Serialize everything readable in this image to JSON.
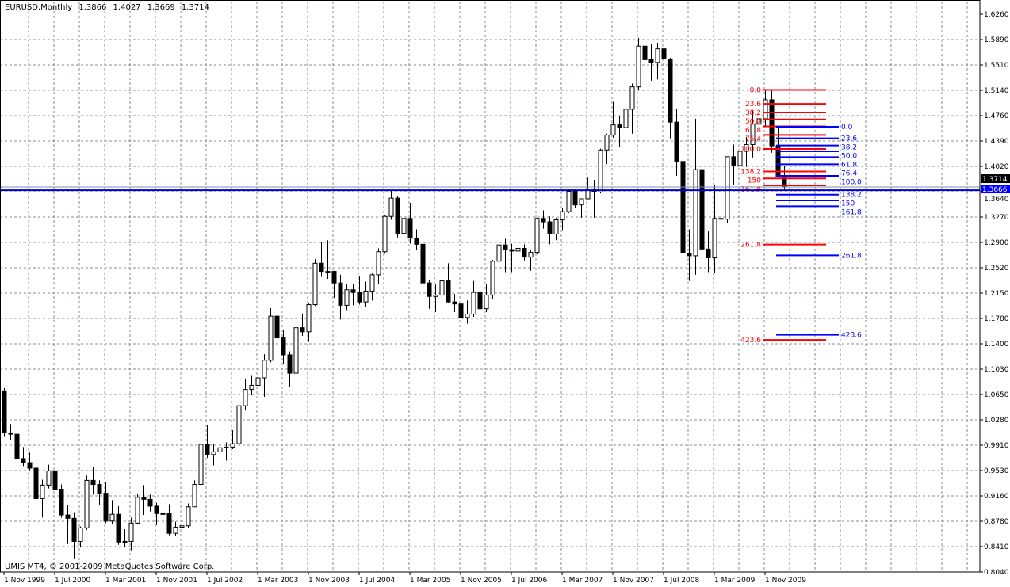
{
  "header": {
    "symbol_timeframe": "EURUSD,Monthly",
    "open": "1.3866",
    "high": "1.4027",
    "low": "1.3669",
    "close": "1.3714"
  },
  "footer": {
    "copyright": "UMIS MT4, © 2001-2009 MetaQuotes Software Corp."
  },
  "colors": {
    "background": "#ffffff",
    "grid": "#7f8c9c",
    "bull_body": "#ffffff",
    "bear_body": "#000000",
    "fib_red": "#ff0000",
    "fib_blue": "#0000ff",
    "bid_line": "#0000cc",
    "ask_line": "#8090a0"
  },
  "chart_data": {
    "type": "candlestick",
    "symbol": "EURUSD",
    "timeframe": "Monthly",
    "grid": true,
    "ylim": [
      0.804,
      1.626
    ],
    "y_ticks": [
      "1.6260",
      "1.5890",
      "1.5510",
      "1.5140",
      "1.4760",
      "1.4390",
      "1.4020",
      "1.3640",
      "1.3270",
      "1.2900",
      "1.2520",
      "1.2150",
      "1.1780",
      "1.1400",
      "1.1030",
      "1.0650",
      "1.0280",
      "0.9910",
      "0.9530",
      "0.9160",
      "0.8780",
      "0.8410",
      "0.8040"
    ],
    "x_ticks": [
      "1 Nov 1999",
      "1 Jul 2000",
      "1 Mar 2001",
      "1 Nov 2001",
      "1 Jul 2002",
      "1 Mar 2003",
      "1 Nov 2003",
      "1 Jul 2004",
      "1 Mar 2005",
      "1 Nov 2005",
      "1 Jul 2006",
      "1 Mar 2007",
      "1 Nov 2007",
      "1 Jul 2008",
      "1 Mar 2009",
      "1 Nov 2009"
    ],
    "price_labels": {
      "ask": "1.3714",
      "bid": "1.3666"
    },
    "candles_columns": [
      "date",
      "open",
      "high",
      "low",
      "close"
    ],
    "candles": [
      [
        "1999-11",
        1.071,
        1.075,
        1.003,
        1.009
      ],
      [
        "1999-12",
        1.009,
        1.022,
        0.999,
        1.007
      ],
      [
        "2000-01",
        1.007,
        1.041,
        0.97,
        0.971
      ],
      [
        "2000-02",
        0.971,
        0.988,
        0.96,
        0.965
      ],
      [
        "2000-03",
        0.965,
        0.98,
        0.954,
        0.957
      ],
      [
        "2000-04",
        0.957,
        0.967,
        0.905,
        0.912
      ],
      [
        "2000-05",
        0.912,
        0.94,
        0.884,
        0.932
      ],
      [
        "2000-06",
        0.932,
        0.962,
        0.927,
        0.953
      ],
      [
        "2000-07",
        0.953,
        0.959,
        0.923,
        0.926
      ],
      [
        "2000-08",
        0.926,
        0.933,
        0.884,
        0.888
      ],
      [
        "2000-09",
        0.888,
        0.903,
        0.845,
        0.883
      ],
      [
        "2000-10",
        0.883,
        0.892,
        0.823,
        0.849
      ],
      [
        "2000-11",
        0.849,
        0.871,
        0.84,
        0.869
      ],
      [
        "2000-12",
        0.869,
        0.946,
        0.866,
        0.939
      ],
      [
        "2001-01",
        0.939,
        0.959,
        0.918,
        0.933
      ],
      [
        "2001-02",
        0.933,
        0.939,
        0.903,
        0.92
      ],
      [
        "2001-03",
        0.92,
        0.936,
        0.876,
        0.879
      ],
      [
        "2001-04",
        0.879,
        0.91,
        0.874,
        0.889
      ],
      [
        "2001-05",
        0.889,
        0.901,
        0.844,
        0.848
      ],
      [
        "2001-06",
        0.848,
        0.867,
        0.84,
        0.849
      ],
      [
        "2001-07",
        0.849,
        0.884,
        0.836,
        0.876
      ],
      [
        "2001-08",
        0.876,
        0.919,
        0.874,
        0.914
      ],
      [
        "2001-09",
        0.914,
        0.932,
        0.888,
        0.911
      ],
      [
        "2001-10",
        0.911,
        0.918,
        0.893,
        0.901
      ],
      [
        "2001-11",
        0.901,
        0.906,
        0.873,
        0.89
      ],
      [
        "2001-12",
        0.89,
        0.9,
        0.875,
        0.89
      ],
      [
        "2002-01",
        0.89,
        0.904,
        0.858,
        0.861
      ],
      [
        "2002-02",
        0.861,
        0.878,
        0.857,
        0.87
      ],
      [
        "2002-03",
        0.87,
        0.885,
        0.864,
        0.872
      ],
      [
        "2002-04",
        0.872,
        0.905,
        0.869,
        0.9
      ],
      [
        "2002-05",
        0.9,
        0.939,
        0.9,
        0.933
      ],
      [
        "2002-06",
        0.933,
        0.995,
        0.931,
        0.992
      ],
      [
        "2002-07",
        0.992,
        1.02,
        0.972,
        0.977
      ],
      [
        "2002-08",
        0.977,
        0.993,
        0.961,
        0.981
      ],
      [
        "2002-09",
        0.981,
        0.995,
        0.969,
        0.987
      ],
      [
        "2002-10",
        0.987,
        0.995,
        0.968,
        0.988
      ],
      [
        "2002-11",
        0.988,
        1.013,
        0.985,
        0.993
      ],
      [
        "2002-12",
        0.993,
        1.051,
        0.987,
        1.049
      ],
      [
        "2003-01",
        1.049,
        1.089,
        1.042,
        1.073
      ],
      [
        "2003-02",
        1.073,
        1.093,
        1.065,
        1.079
      ],
      [
        "2003-03",
        1.079,
        1.108,
        1.05,
        1.09
      ],
      [
        "2003-04",
        1.09,
        1.125,
        1.062,
        1.116
      ],
      [
        "2003-05",
        1.116,
        1.193,
        1.113,
        1.181
      ],
      [
        "2003-06",
        1.181,
        1.193,
        1.14,
        1.149
      ],
      [
        "2003-07",
        1.149,
        1.161,
        1.11,
        1.124
      ],
      [
        "2003-08",
        1.124,
        1.129,
        1.076,
        1.097
      ],
      [
        "2003-09",
        1.097,
        1.167,
        1.081,
        1.164
      ],
      [
        "2003-10",
        1.164,
        1.185,
        1.152,
        1.158
      ],
      [
        "2003-11",
        1.158,
        1.2,
        1.143,
        1.198
      ],
      [
        "2003-12",
        1.198,
        1.265,
        1.196,
        1.259
      ],
      [
        "2004-01",
        1.259,
        1.29,
        1.239,
        1.247
      ],
      [
        "2004-02",
        1.247,
        1.293,
        1.236,
        1.247
      ],
      [
        "2004-03",
        1.247,
        1.248,
        1.208,
        1.23
      ],
      [
        "2004-04",
        1.23,
        1.242,
        1.176,
        1.197
      ],
      [
        "2004-05",
        1.197,
        1.228,
        1.19,
        1.22
      ],
      [
        "2004-06",
        1.22,
        1.228,
        1.197,
        1.216
      ],
      [
        "2004-07",
        1.216,
        1.24,
        1.198,
        1.202
      ],
      [
        "2004-08",
        1.202,
        1.232,
        1.195,
        1.218
      ],
      [
        "2004-09",
        1.218,
        1.244,
        1.204,
        1.242
      ],
      [
        "2004-10",
        1.242,
        1.281,
        1.229,
        1.276
      ],
      [
        "2004-11",
        1.276,
        1.33,
        1.273,
        1.328
      ],
      [
        "2004-12",
        1.328,
        1.367,
        1.323,
        1.355
      ],
      [
        "2005-01",
        1.355,
        1.358,
        1.297,
        1.303
      ],
      [
        "2005-02",
        1.303,
        1.329,
        1.276,
        1.325
      ],
      [
        "2005-03",
        1.325,
        1.348,
        1.288,
        1.296
      ],
      [
        "2005-04",
        1.296,
        1.309,
        1.278,
        1.287
      ],
      [
        "2005-05",
        1.287,
        1.297,
        1.23,
        1.23
      ],
      [
        "2005-06",
        1.23,
        1.235,
        1.192,
        1.21
      ],
      [
        "2005-07",
        1.21,
        1.229,
        1.187,
        1.212
      ],
      [
        "2005-08",
        1.212,
        1.252,
        1.211,
        1.233
      ],
      [
        "2005-09",
        1.233,
        1.259,
        1.2,
        1.202
      ],
      [
        "2005-10",
        1.202,
        1.214,
        1.187,
        1.199
      ],
      [
        "2005-11",
        1.199,
        1.21,
        1.164,
        1.179
      ],
      [
        "2005-12",
        1.179,
        1.204,
        1.17,
        1.184
      ],
      [
        "2006-01",
        1.184,
        1.233,
        1.18,
        1.216
      ],
      [
        "2006-02",
        1.216,
        1.22,
        1.182,
        1.192
      ],
      [
        "2006-03",
        1.192,
        1.229,
        1.187,
        1.212
      ],
      [
        "2006-04",
        1.212,
        1.264,
        1.206,
        1.262
      ],
      [
        "2006-05",
        1.262,
        1.298,
        1.256,
        1.286
      ],
      [
        "2006-06",
        1.286,
        1.295,
        1.246,
        1.279
      ],
      [
        "2006-07",
        1.279,
        1.288,
        1.246,
        1.277
      ],
      [
        "2006-08",
        1.277,
        1.297,
        1.271,
        1.281
      ],
      [
        "2006-09",
        1.281,
        1.287,
        1.263,
        1.268
      ],
      [
        "2006-10",
        1.268,
        1.279,
        1.248,
        1.275
      ],
      [
        "2006-11",
        1.275,
        1.326,
        1.272,
        1.325
      ],
      [
        "2006-12",
        1.325,
        1.337,
        1.31,
        1.32
      ],
      [
        "2007-01",
        1.32,
        1.328,
        1.287,
        1.302
      ],
      [
        "2007-02",
        1.302,
        1.326,
        1.293,
        1.323
      ],
      [
        "2007-03",
        1.323,
        1.341,
        1.308,
        1.335
      ],
      [
        "2007-04",
        1.335,
        1.368,
        1.333,
        1.365
      ],
      [
        "2007-05",
        1.365,
        1.368,
        1.341,
        1.345
      ],
      [
        "2007-06",
        1.345,
        1.354,
        1.326,
        1.354
      ],
      [
        "2007-07",
        1.354,
        1.385,
        1.353,
        1.368
      ],
      [
        "2007-08",
        1.368,
        1.382,
        1.326,
        1.364
      ],
      [
        "2007-09",
        1.364,
        1.428,
        1.362,
        1.426
      ],
      [
        "2007-10",
        1.426,
        1.45,
        1.405,
        1.448
      ],
      [
        "2007-11",
        1.448,
        1.497,
        1.444,
        1.463
      ],
      [
        "2007-12",
        1.463,
        1.476,
        1.43,
        1.459
      ],
      [
        "2008-01",
        1.459,
        1.49,
        1.44,
        1.486
      ],
      [
        "2008-02",
        1.486,
        1.524,
        1.45,
        1.519
      ],
      [
        "2008-03",
        1.519,
        1.591,
        1.515,
        1.579
      ],
      [
        "2008-04",
        1.579,
        1.602,
        1.551,
        1.559
      ],
      [
        "2008-05",
        1.559,
        1.582,
        1.528,
        1.555
      ],
      [
        "2008-06",
        1.555,
        1.584,
        1.53,
        1.575
      ],
      [
        "2008-07",
        1.575,
        1.604,
        1.552,
        1.56
      ],
      [
        "2008-08",
        1.56,
        1.562,
        1.443,
        1.467
      ],
      [
        "2008-09",
        1.467,
        1.487,
        1.388,
        1.409
      ],
      [
        "2008-10",
        1.409,
        1.411,
        1.233,
        1.274
      ],
      [
        "2008-11",
        1.274,
        1.309,
        1.233,
        1.27
      ],
      [
        "2008-12",
        1.27,
        1.472,
        1.242,
        1.397
      ],
      [
        "2009-01",
        1.397,
        1.412,
        1.266,
        1.28
      ],
      [
        "2009-02",
        1.28,
        1.306,
        1.246,
        1.267
      ],
      [
        "2009-03",
        1.267,
        1.374,
        1.245,
        1.325
      ],
      [
        "2009-04",
        1.325,
        1.351,
        1.288,
        1.324
      ],
      [
        "2009-05",
        1.324,
        1.416,
        1.318,
        1.416
      ],
      [
        "2009-06",
        1.416,
        1.434,
        1.375,
        1.403
      ],
      [
        "2009-07",
        1.403,
        1.429,
        1.383,
        1.424
      ],
      [
        "2009-08",
        1.424,
        1.445,
        1.401,
        1.434
      ],
      [
        "2009-09",
        1.434,
        1.484,
        1.415,
        1.464
      ],
      [
        "2009-10",
        1.464,
        1.506,
        1.448,
        1.472
      ],
      [
        "2009-11",
        1.472,
        1.514,
        1.462,
        1.5
      ],
      [
        "2009-12",
        1.5,
        1.514,
        1.422,
        1.432
      ],
      [
        "2010-01",
        1.432,
        1.458,
        1.386,
        1.3866
      ],
      [
        "2010-02",
        1.3866,
        1.4027,
        1.3669,
        1.3714
      ]
    ],
    "fibonacci": [
      {
        "color": "red",
        "start": "2009-11",
        "price_0": 1.5145,
        "price_100": 1.4275,
        "levels": [
          "0.0",
          "23.6",
          "38.2",
          "50.0",
          "61.8",
          "76.4",
          "100.0",
          "138.2",
          "150",
          "161.8",
          "261.8",
          "423.6"
        ]
      },
      {
        "color": "blue",
        "start": "2010-01",
        "price_0": 1.4602,
        "price_100": 1.3878,
        "levels": [
          "0.0",
          "23.6",
          "38.2",
          "50.0",
          "61.8",
          "76.4",
          "100.0",
          "138.2",
          "150",
          "161.8",
          "261.8",
          "423.6"
        ]
      }
    ]
  }
}
